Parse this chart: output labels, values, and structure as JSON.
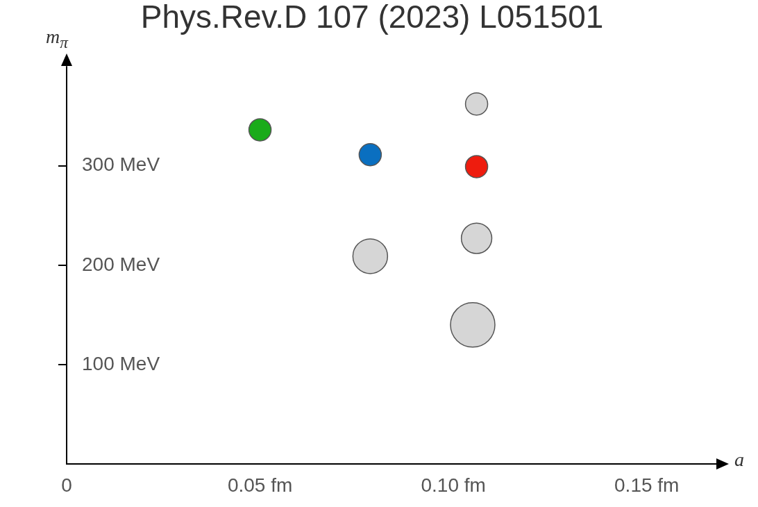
{
  "chart_data": {
    "type": "bubble",
    "title": "Phys.Rev.D 107 (2023) L051501",
    "xlabel": "a",
    "ylabel": "m$_{π}$",
    "x": [
      0.05,
      0.0785,
      0.106,
      0.106,
      0.106,
      0.0785,
      0.105
    ],
    "values": [
      336,
      311,
      299,
      362,
      227,
      209,
      140
    ],
    "sizes": [
      0.25,
      0.25,
      0.25,
      0.25,
      0.47,
      0.61,
      1
    ],
    "colors": [
      "#1aab1a",
      "#0a6fc0",
      "#ee1c0e",
      "#d6d6d6",
      "#d6d6d6",
      "#d6d6d6",
      "#d6d6d6"
    ],
    "xlim": [
      0,
      0.168
    ],
    "ylim": [
      0,
      400
    ],
    "xticks": [
      {
        "value": 0,
        "label": "0"
      },
      {
        "value": 0.05,
        "label": "0.05 fm"
      },
      {
        "value": 0.1,
        "label": "0.10 fm"
      },
      {
        "value": 0.15,
        "label": "0.15 fm"
      }
    ],
    "yticks": [
      {
        "value": 100,
        "label": "100 MeV"
      },
      {
        "value": 200,
        "label": "200 MeV"
      },
      {
        "value": 300,
        "label": "300 MeV"
      }
    ],
    "grid": false,
    "legend": false
  }
}
